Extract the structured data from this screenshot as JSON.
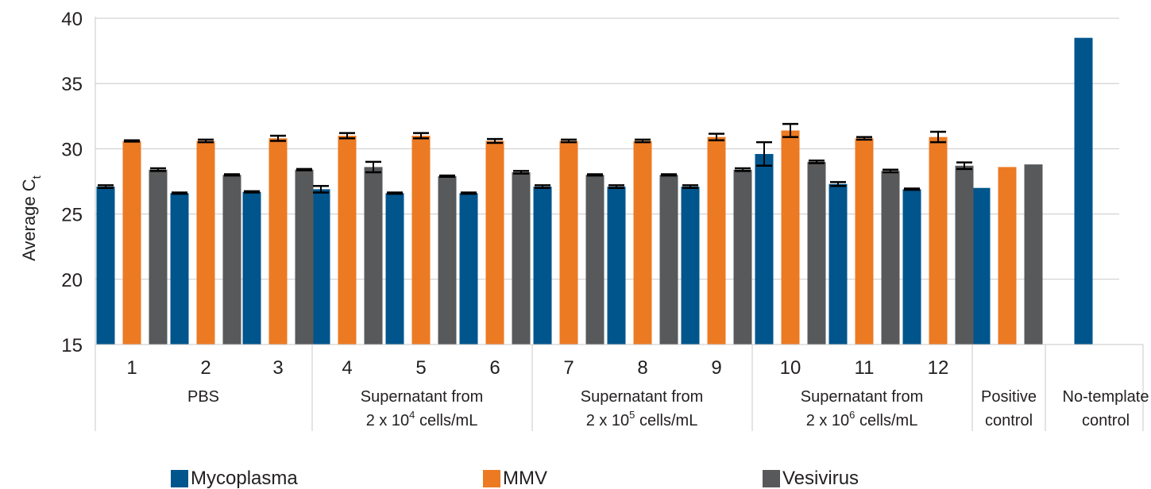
{
  "chart_data": {
    "type": "bar",
    "ylabel": "Average C",
    "ylabel_subscript": "t",
    "ylim": [
      15,
      40
    ],
    "yticks": [
      "15",
      "20",
      "25",
      "30",
      "35",
      "40"
    ],
    "grid": true,
    "legend_position": "bottom",
    "colors": {
      "Mycoplasma": "#00558c",
      "MMV": "#ec7a23",
      "Vesivirus": "#58595b"
    },
    "categories": [
      "1",
      "2",
      "3",
      "4",
      "5",
      "6",
      "7",
      "8",
      "9",
      "10",
      "11",
      "12",
      "",
      ""
    ],
    "groups": [
      {
        "lines": [
          "PBS"
        ]
      },
      {
        "lines": [
          "Supernatant from",
          "2 x 10",
          "4",
          " cells/mL"
        ]
      },
      {
        "lines": [
          "Supernatant from",
          "2 x 10",
          "5",
          " cells/mL"
        ]
      },
      {
        "lines": [
          "Supernatant from",
          "2 x 10",
          "6",
          " cells/mL"
        ]
      },
      {
        "lines": [
          "Positive",
          "control"
        ]
      },
      {
        "lines": [
          "No-template",
          "control"
        ]
      }
    ],
    "series": [
      {
        "name": "Mycoplasma",
        "values": [
          27.1,
          26.6,
          26.7,
          26.9,
          26.6,
          26.6,
          27.1,
          27.1,
          27.1,
          29.6,
          27.3,
          26.9,
          27.0,
          38.5
        ],
        "errors": [
          0.1,
          0.05,
          0.05,
          0.25,
          0.05,
          0.05,
          0.1,
          0.1,
          0.1,
          0.9,
          0.15,
          0.05,
          null,
          null
        ]
      },
      {
        "name": "MMV",
        "values": [
          30.6,
          30.6,
          30.8,
          31.0,
          31.0,
          30.6,
          30.6,
          30.6,
          30.9,
          31.4,
          30.8,
          30.9,
          28.6,
          null
        ],
        "errors": [
          0.05,
          0.1,
          0.2,
          0.2,
          0.2,
          0.15,
          0.1,
          0.1,
          0.25,
          0.5,
          0.1,
          0.4,
          null,
          null
        ]
      },
      {
        "name": "Vesivirus",
        "values": [
          28.4,
          28.0,
          28.4,
          28.6,
          27.9,
          28.2,
          28.0,
          28.0,
          28.4,
          29.0,
          28.3,
          28.7,
          28.8,
          null
        ],
        "errors": [
          0.1,
          0.05,
          0.05,
          0.4,
          0.05,
          0.1,
          0.05,
          0.05,
          0.1,
          0.1,
          0.1,
          0.25,
          null,
          null
        ]
      }
    ]
  }
}
